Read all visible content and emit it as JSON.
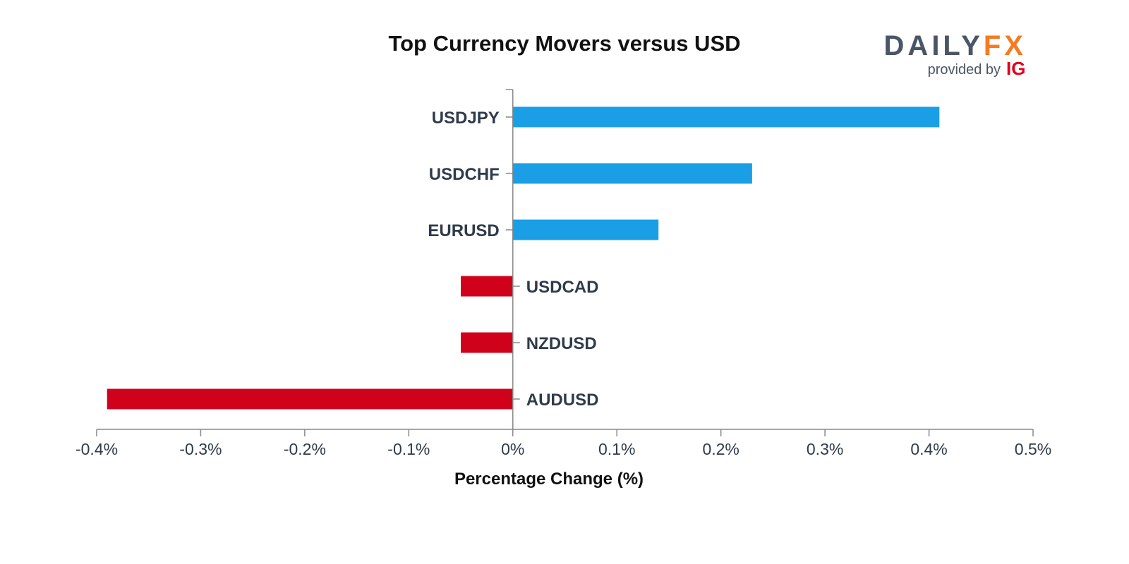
{
  "brand": {
    "daily": "DAILY",
    "fx": "FX",
    "provided_by": "provided by",
    "ig": "IG",
    "colors": {
      "daily": "#4a5565",
      "fx": "#f47b20",
      "ig": "#e3001b"
    }
  },
  "chart_data": {
    "type": "bar",
    "orientation": "horizontal",
    "title": "Top Currency Movers versus USD",
    "xlabel": "Percentage Change (%)",
    "ylabel": "",
    "categories": [
      "USDJPY",
      "USDCHF",
      "EURUSD",
      "USDCAD",
      "NZDUSD",
      "AUDUSD"
    ],
    "values": [
      0.41,
      0.23,
      0.14,
      -0.05,
      -0.05,
      -0.39
    ],
    "xlim": [
      -0.4,
      0.5
    ],
    "x_ticks": [
      -0.4,
      -0.3,
      -0.2,
      -0.1,
      0,
      0.1,
      0.2,
      0.3,
      0.4,
      0.5
    ],
    "x_tick_labels": [
      "-0.4%",
      "-0.3%",
      "-0.2%",
      "-0.1%",
      "0%",
      "0.1%",
      "0.2%",
      "0.3%",
      "0.4%",
      "0.5%"
    ],
    "colors": {
      "positive": "#1a9ee6",
      "negative": "#d0021b",
      "axis": "#888888"
    },
    "grid": false,
    "legend": "none"
  }
}
